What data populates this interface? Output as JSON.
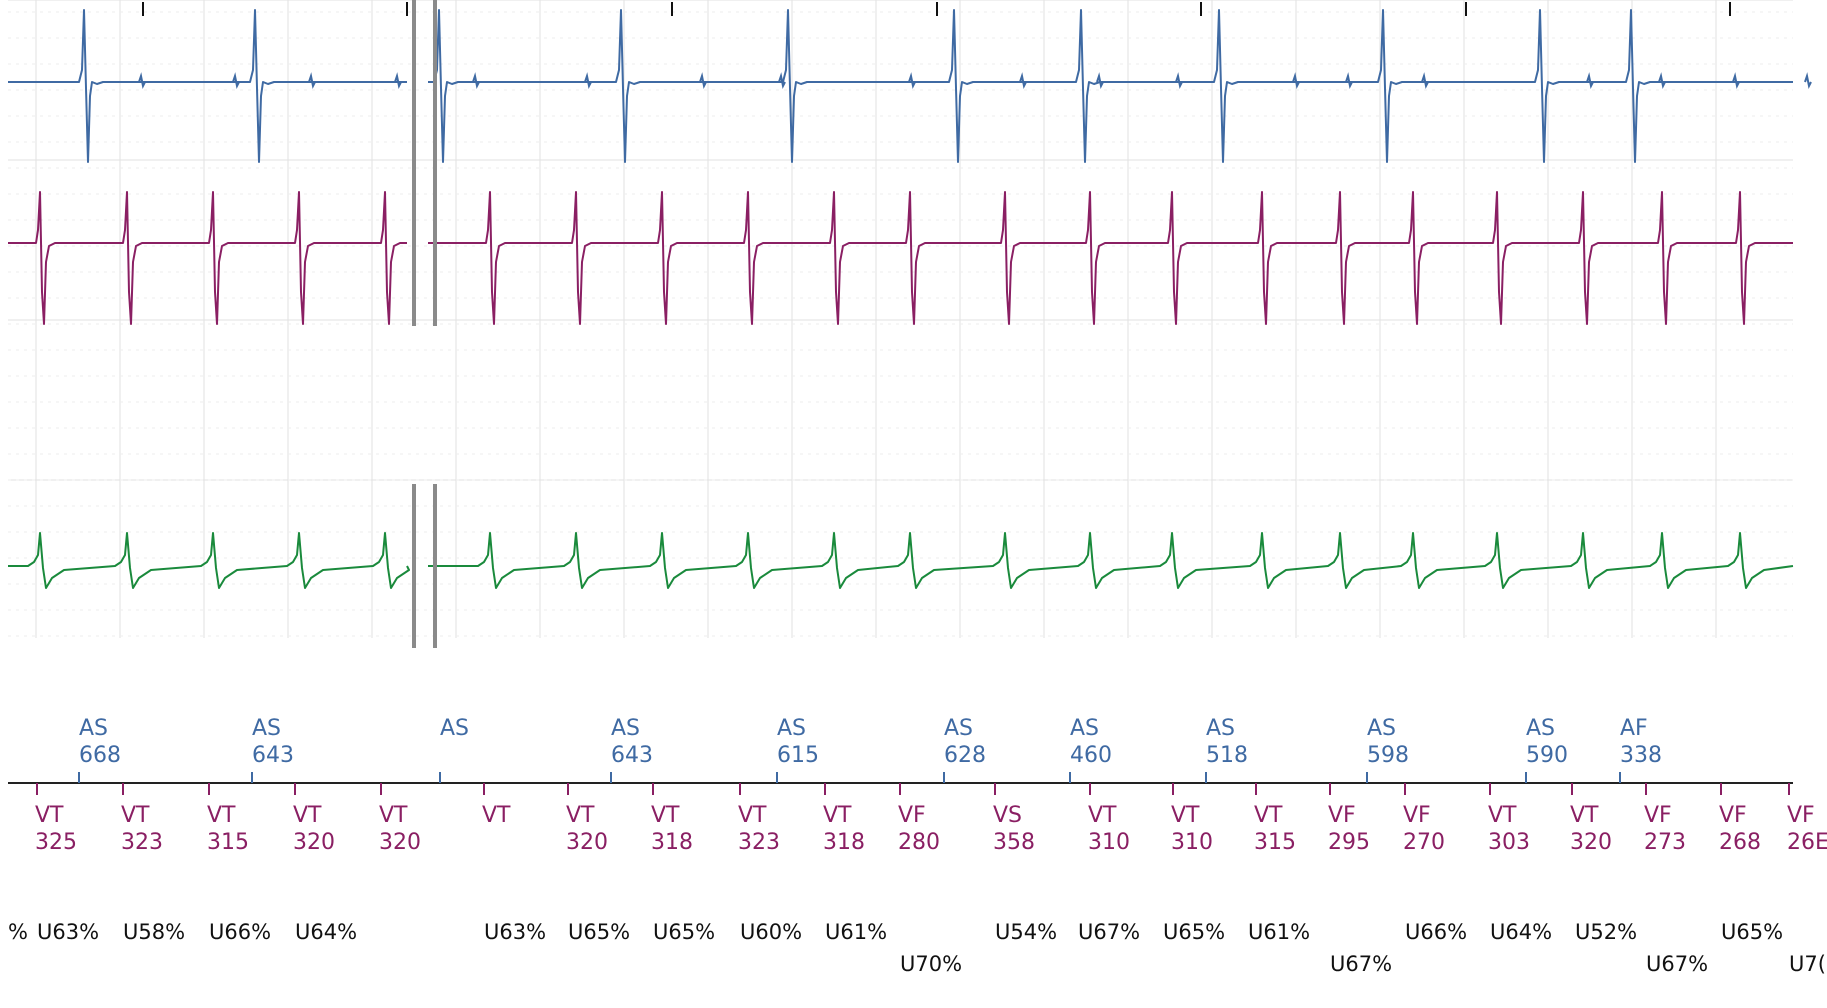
{
  "chart_data": {
    "type": "line",
    "title": "",
    "grid": true,
    "colors": {
      "atrial": "#3f6aa3",
      "ventricular": "#8a1f63",
      "shock": "#1a8a3c",
      "marker_line": "#222222",
      "percent_text": "#111111",
      "gap_bar": "#8a8a8a",
      "grid_major": "#e2e2e2",
      "grid_minor": "#eeeeee"
    },
    "atrial_markers": [
      {
        "label": "AS",
        "interval": "668"
      },
      {
        "label": "AS",
        "interval": "643"
      },
      {
        "label": "AS",
        "interval": ""
      },
      {
        "label": "AS",
        "interval": "643"
      },
      {
        "label": "AS",
        "interval": "615"
      },
      {
        "label": "AS",
        "interval": "628"
      },
      {
        "label": "AS",
        "interval": "460"
      },
      {
        "label": "AS",
        "interval": "518"
      },
      {
        "label": "AS",
        "interval": "598"
      },
      {
        "label": "AS",
        "interval": "590"
      },
      {
        "label": "AF",
        "interval": "338"
      }
    ],
    "ventricular_markers": [
      {
        "label": "VT",
        "interval": "325"
      },
      {
        "label": "VT",
        "interval": "323"
      },
      {
        "label": "VT",
        "interval": "315"
      },
      {
        "label": "VT",
        "interval": "320"
      },
      {
        "label": "VT",
        "interval": "320"
      },
      {
        "label": "VT",
        "interval": ""
      },
      {
        "label": "VT",
        "interval": "320"
      },
      {
        "label": "VT",
        "interval": "318"
      },
      {
        "label": "VT",
        "interval": "323"
      },
      {
        "label": "VT",
        "interval": "318"
      },
      {
        "label": "VF",
        "interval": "280"
      },
      {
        "label": "VS",
        "interval": "358"
      },
      {
        "label": "VT",
        "interval": "310"
      },
      {
        "label": "VT",
        "interval": "310"
      },
      {
        "label": "VT",
        "interval": "315"
      },
      {
        "label": "VF",
        "interval": "295"
      },
      {
        "label": "VF",
        "interval": "270"
      },
      {
        "label": "VT",
        "interval": "303"
      },
      {
        "label": "VT",
        "interval": "320"
      },
      {
        "label": "VF",
        "interval": "273"
      },
      {
        "label": "VF",
        "interval": "268"
      },
      {
        "label": "VF",
        "interval": "26E"
      }
    ],
    "percent_labels": [
      {
        "text": "%",
        "row": 1
      },
      {
        "text": "U63%",
        "row": 1
      },
      {
        "text": "U58%",
        "row": 1
      },
      {
        "text": "U66%",
        "row": 1
      },
      {
        "text": "U64%",
        "row": 1
      },
      {
        "text": "U63%",
        "row": 1
      },
      {
        "text": "U65%",
        "row": 1
      },
      {
        "text": "U65%",
        "row": 1
      },
      {
        "text": "U60%",
        "row": 1
      },
      {
        "text": "U61%",
        "row": 1
      },
      {
        "text": "U70%",
        "row": 2
      },
      {
        "text": "U54%",
        "row": 1
      },
      {
        "text": "U67%",
        "row": 1
      },
      {
        "text": "U65%",
        "row": 1
      },
      {
        "text": "U61%",
        "row": 1
      },
      {
        "text": "U67%",
        "row": 2
      },
      {
        "text": "U66%",
        "row": 1
      },
      {
        "text": "U64%",
        "row": 1
      },
      {
        "text": "U52%",
        "row": 1
      },
      {
        "text": "U67%",
        "row": 2
      },
      {
        "text": "U65%",
        "row": 1
      },
      {
        "text": "U7(",
        "row": 2
      }
    ]
  }
}
